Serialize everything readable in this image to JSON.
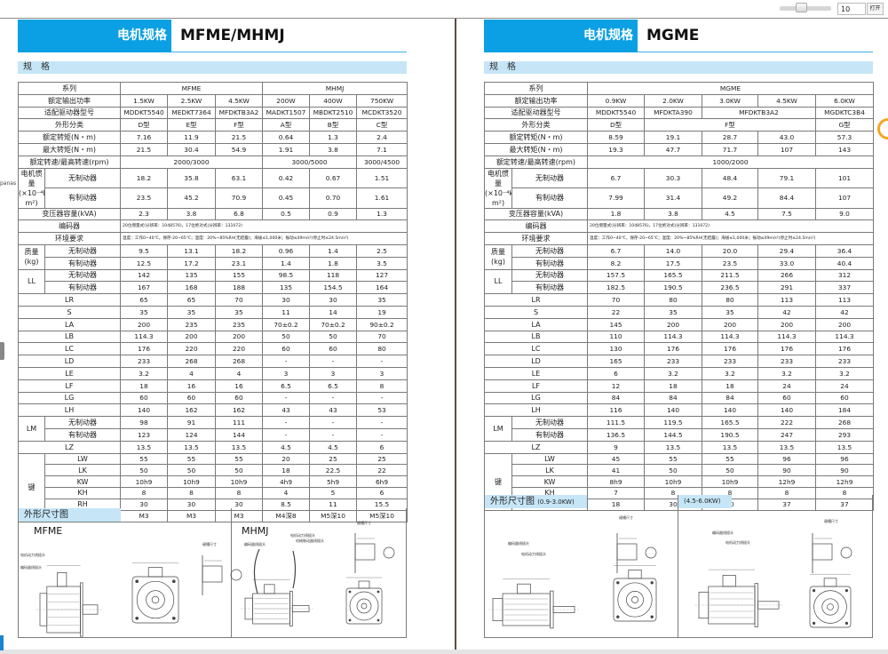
{
  "viewer": {
    "page_number": "10",
    "open_label": "打开",
    "side_text": "panas"
  },
  "colors": {
    "brand_blue": "#0aa0e3",
    "section_bg": "#c6e6f7",
    "accent_orange": "#f5a623"
  },
  "left": {
    "header_label": "电机规格",
    "header_title": "MFME/MHMJ",
    "spec_heading": "规　格",
    "drawing_heading": "外形尺寸图",
    "drawing_a": "MFME",
    "drawing_b": "MHMJ",
    "callouts": {
      "power_plug": "电机动力线插头",
      "encoder_plug": "编码器线插头",
      "keyway": "键槽尺寸",
      "brake_plug": "机械制动器线插头"
    },
    "rows": [
      {
        "label": "系列",
        "cells": [
          {
            "v": "MFME",
            "span": 3
          },
          {
            "v": "MHMJ",
            "span": 3
          }
        ]
      },
      {
        "label": "额定输出功率",
        "cells": [
          "1.5KW",
          "2.5KW",
          "4.5KW",
          "200W",
          "400W",
          "750KW"
        ]
      },
      {
        "label": "适配驱动器型号",
        "cells": [
          "MDDKT5540",
          "MEDKT7364",
          "MFDKTB3A2",
          "MADKT1507",
          "MBDKT2510",
          "MCDKT3520"
        ]
      },
      {
        "label": "外形分类",
        "cells": [
          "D型",
          "E型",
          "F型",
          "A型",
          "B型",
          "C型"
        ]
      },
      {
        "label": "额定转矩(N・m)",
        "cells": [
          "7.16",
          "11.9",
          "21.5",
          "0.64",
          "1.3",
          "2.4"
        ]
      },
      {
        "label": "最大转矩(N・m)",
        "cells": [
          "21.5",
          "30.4",
          "54.9",
          "1.91",
          "3.8",
          "7.1"
        ]
      },
      {
        "label": "额定转速/最高转速(rpm)",
        "cells": [
          {
            "v": "2000/3000",
            "span": 3
          },
          {
            "v": "3000/5000",
            "span": 2
          },
          "3000/4500"
        ]
      },
      {
        "group": "电机惯量\n(×10⁻⁴kg・m²)",
        "gspan": 2,
        "sub": "无制动器",
        "cells": [
          "18.2",
          "35.8",
          "63.1",
          "0.42",
          "0.67",
          "1.51"
        ]
      },
      {
        "sub": "有制动器",
        "cells": [
          "23.5",
          "45.2",
          "70.9",
          "0.45",
          "0.70",
          "1.61"
        ]
      },
      {
        "label": "变压器容量(kVA)",
        "cells": [
          "2.3",
          "3.8",
          "6.8",
          "0.5",
          "0.9",
          "1.3"
        ]
      },
      {
        "label": "编码器",
        "note": "20位增量式(分辨率：1048576)，17位绝对式(分辨率：131072)"
      },
      {
        "label": "环境要求",
        "note": "温度：工作0~40℃，保存-20~65℃；湿度：20%~85%RH(无结露)；海拔≤1,000米；振动≤49m/s²(停止时≤24.5m/s²)"
      },
      {
        "group": "质量\n(kg)",
        "gspan": 2,
        "sub": "无制动器",
        "cells": [
          "9.5",
          "13.1",
          "18.2",
          "0.96",
          "1.4",
          "2.5"
        ]
      },
      {
        "sub": "有制动器",
        "cells": [
          "12.5",
          "17.2",
          "23.1",
          "1.4",
          "1.8",
          "3.5"
        ]
      },
      {
        "group": "LL",
        "gspan": 2,
        "sub": "无制动器",
        "cells": [
          "142",
          "135",
          "155",
          "98.5",
          "118",
          "127"
        ]
      },
      {
        "sub": "有制动器",
        "cells": [
          "167",
          "168",
          "188",
          "135",
          "154.5",
          "164"
        ]
      },
      {
        "label": "LR",
        "cells": [
          "65",
          "65",
          "70",
          "30",
          "30",
          "35"
        ]
      },
      {
        "label": "S",
        "cells": [
          "35",
          "35",
          "35",
          "11",
          "14",
          "19"
        ]
      },
      {
        "label": "LA",
        "cells": [
          "200",
          "235",
          "235",
          "70±0.2",
          "70±0.2",
          "90±0.2"
        ]
      },
      {
        "label": "LB",
        "cells": [
          "114.3",
          "200",
          "200",
          "50",
          "50",
          "70"
        ]
      },
      {
        "label": "LC",
        "cells": [
          "176",
          "220",
          "220",
          "60",
          "60",
          "80"
        ]
      },
      {
        "label": "LD",
        "cells": [
          "233",
          "268",
          "268",
          "-",
          "-",
          "-"
        ]
      },
      {
        "label": "LE",
        "cells": [
          "3.2",
          "4",
          "4",
          "3",
          "3",
          "3"
        ]
      },
      {
        "label": "LF",
        "cells": [
          "18",
          "16",
          "16",
          "6.5",
          "6.5",
          "8"
        ]
      },
      {
        "label": "LG",
        "cells": [
          "60",
          "60",
          "60",
          "-",
          "-",
          "-"
        ]
      },
      {
        "label": "LH",
        "cells": [
          "140",
          "162",
          "162",
          "43",
          "43",
          "53"
        ]
      },
      {
        "group": "LM",
        "gspan": 2,
        "sub": "无制动器",
        "cells": [
          "98",
          "91",
          "111",
          "-",
          "-",
          "-"
        ]
      },
      {
        "sub": "有制动器",
        "cells": [
          "123",
          "124",
          "144",
          "-",
          "-",
          "-"
        ]
      },
      {
        "label": "LZ",
        "cells": [
          "13.5",
          "13.5",
          "13.5",
          "4.5",
          "4.5",
          "6"
        ]
      },
      {
        "group": "键",
        "gspan": 6,
        "sub": "LW",
        "key": true,
        "cells": [
          "55",
          "55",
          "55",
          "20",
          "25",
          "25"
        ]
      },
      {
        "sub": "LK",
        "key": true,
        "cells": [
          "50",
          "50",
          "50",
          "18",
          "22.5",
          "22"
        ]
      },
      {
        "sub": "KW",
        "key": true,
        "cells": [
          "10h9",
          "10h9",
          "10h9",
          "4h9",
          "5h9",
          "6h9"
        ]
      },
      {
        "sub": "KH",
        "key": true,
        "cells": [
          "8",
          "8",
          "8",
          "4",
          "5",
          "6"
        ]
      },
      {
        "sub": "RH",
        "key": true,
        "cells": [
          "30",
          "30",
          "30",
          "8.5",
          "11",
          "15.5"
        ]
      },
      {
        "sub": "TP",
        "key": true,
        "cells": [
          "M3",
          "M3",
          "M3",
          "M4深8",
          "M5深10",
          "M5深10"
        ]
      }
    ]
  },
  "right": {
    "header_label": "电机规格",
    "header_title": "MGME",
    "spec_heading": "规　格",
    "drawing_heading": "外形尺寸图",
    "drawing_a_range": "(0.9-3.0KW)",
    "drawing_b_range": "(4.5-6.0KW)",
    "callouts": {
      "power_plug": "电机动力线插头",
      "encoder_plug": "编码器线插头",
      "keyway": "键槽尺寸"
    },
    "rows": [
      {
        "label": "系列",
        "cells": [
          {
            "v": "MGME",
            "span": 5
          }
        ]
      },
      {
        "label": "额定输出功率",
        "cells": [
          "0.9KW",
          "2.0KW",
          "3.0KW",
          "4.5KW",
          "6.0KW"
        ]
      },
      {
        "label": "适配驱动器型号",
        "cells": [
          "MDDKT5540",
          "MFDKTA390",
          {
            "v": "MFDKTB3A2",
            "span": 2
          },
          "MGDKTC3B4"
        ]
      },
      {
        "label": "外形分类",
        "cells": [
          "D型",
          {
            "v": "F型",
            "span": 3
          },
          "G型"
        ]
      },
      {
        "label": "额定转矩(N・m)",
        "cells": [
          "8.59",
          "19.1",
          "28.7",
          "43.0",
          "57.3"
        ]
      },
      {
        "label": "最大转矩(N・m)",
        "cells": [
          "19.3",
          "47.7",
          "71.7",
          "107",
          "143"
        ]
      },
      {
        "label": "额定转速/最高转速(rpm)",
        "cells": [
          {
            "v": "1000/2000",
            "span": 5
          }
        ]
      },
      {
        "group": "电机惯量\n(×10⁻⁴kg・m²)",
        "gspan": 2,
        "sub": "无制动器",
        "cells": [
          "6.7",
          "30.3",
          "48.4",
          "79.1",
          "101"
        ]
      },
      {
        "sub": "有制动器",
        "cells": [
          "7.99",
          "31.4",
          "49.2",
          "84.4",
          "107"
        ]
      },
      {
        "label": "变压器容量(kVA)",
        "cells": [
          "1.8",
          "3.8",
          "4.5",
          "7.5",
          "9.0"
        ]
      },
      {
        "label": "编码器",
        "note": "20位增量式(分辨率：1048576)，17位绝对式(分辨率：131072)"
      },
      {
        "label": "环境要求",
        "note": "温度：工作0~40℃，保存-20~65℃；湿度：20%~85%RH(无结露)；海拔≤1,000米；振动≤49m/s²(停止时≤24.5m/s²)"
      },
      {
        "group": "质量\n(kg)",
        "gspan": 2,
        "sub": "无制动器",
        "cells": [
          "6.7",
          "14.0",
          "20.0",
          "29.4",
          "36.4"
        ]
      },
      {
        "sub": "有制动器",
        "cells": [
          "8.2",
          "17.5",
          "23.5",
          "33.0",
          "40.4"
        ]
      },
      {
        "group": "LL",
        "gspan": 2,
        "sub": "无制动器",
        "cells": [
          "157.5",
          "165.5",
          "211.5",
          "266",
          "312"
        ]
      },
      {
        "sub": "有制动器",
        "cells": [
          "182.5",
          "190.5",
          "236.5",
          "291",
          "337"
        ]
      },
      {
        "label": "LR",
        "cells": [
          "70",
          "80",
          "80",
          "113",
          "113"
        ]
      },
      {
        "label": "S",
        "cells": [
          "22",
          "35",
          "35",
          "42",
          "42"
        ]
      },
      {
        "label": "LA",
        "cells": [
          "145",
          "200",
          "200",
          "200",
          "200"
        ]
      },
      {
        "label": "LB",
        "cells": [
          "110",
          "114.3",
          "114.3",
          "114.3",
          "114.3"
        ]
      },
      {
        "label": "LC",
        "cells": [
          "130",
          "176",
          "176",
          "176",
          "176"
        ]
      },
      {
        "label": "LD",
        "cells": [
          "165",
          "233",
          "233",
          "233",
          "233"
        ]
      },
      {
        "label": "LE",
        "cells": [
          "6",
          "3.2",
          "3.2",
          "3.2",
          "3.2"
        ]
      },
      {
        "label": "LF",
        "cells": [
          "12",
          "18",
          "18",
          "24",
          "24"
        ]
      },
      {
        "label": "LG",
        "cells": [
          "84",
          "84",
          "84",
          "60",
          "60"
        ]
      },
      {
        "label": "LH",
        "cells": [
          "116",
          "140",
          "140",
          "140",
          "184"
        ]
      },
      {
        "group": "LM",
        "gspan": 2,
        "sub": "无制动器",
        "cells": [
          "111.5",
          "119.5",
          "165.5",
          "222",
          "268"
        ]
      },
      {
        "sub": "有制动器",
        "cells": [
          "136.5",
          "144.5",
          "190.5",
          "247",
          "293"
        ]
      },
      {
        "label": "LZ",
        "cells": [
          "9",
          "13.5",
          "13.5",
          "13.5",
          "13.5"
        ]
      },
      {
        "group": "键",
        "gspan": 5,
        "sub": "LW",
        "key": true,
        "cells": [
          "45",
          "55",
          "55",
          "96",
          "96"
        ]
      },
      {
        "sub": "LK",
        "key": true,
        "cells": [
          "41",
          "50",
          "50",
          "90",
          "90"
        ]
      },
      {
        "sub": "KW",
        "key": true,
        "cells": [
          "8h9",
          "10h9",
          "10h9",
          "12h9",
          "12h9"
        ]
      },
      {
        "sub": "KH",
        "key": true,
        "cells": [
          "7",
          "8",
          "8",
          "8",
          "8"
        ]
      },
      {
        "sub": "RH",
        "key": true,
        "cells": [
          "18",
          "30",
          "30",
          "37",
          "37"
        ]
      }
    ]
  }
}
